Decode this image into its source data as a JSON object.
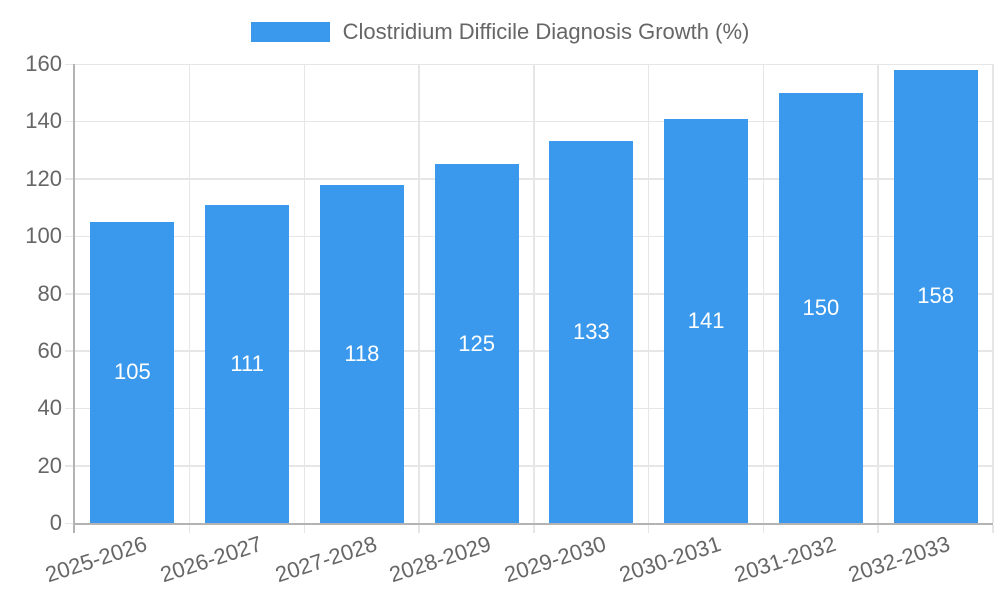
{
  "chart_data": {
    "type": "bar",
    "title": "Clostridium Difficile Diagnosis Growth (%)",
    "legend_position": "top",
    "grid": true,
    "categories": [
      "2025-2026",
      "2026-2027",
      "2027-2028",
      "2028-2029",
      "2029-2030",
      "2030-2031",
      "2031-2032",
      "2032-2033"
    ],
    "values": [
      105,
      111,
      118,
      125,
      133,
      141,
      150,
      158
    ],
    "y_ticks": [
      0,
      20,
      40,
      60,
      80,
      100,
      120,
      140,
      160
    ],
    "ylim": [
      0,
      160
    ],
    "xlabel": "",
    "ylabel": "",
    "bar_color": "#3A99EC",
    "grid_color": "#e6e6e6",
    "axis_color": "#b3b3b3",
    "text_color": "#666666",
    "bar_label_color": "#ffffff"
  }
}
